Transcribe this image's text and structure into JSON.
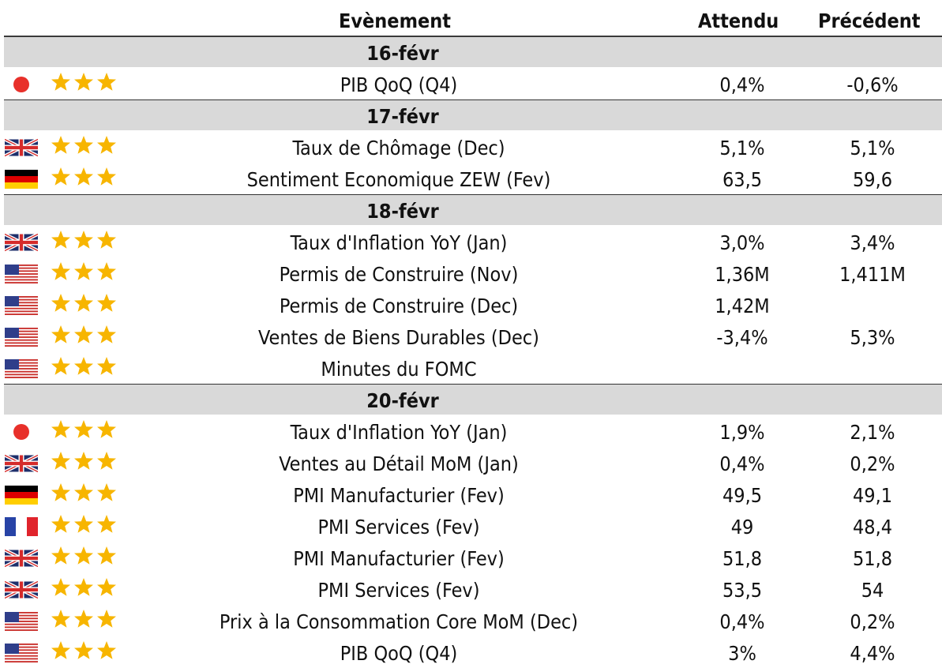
{
  "header": {
    "event": "Evènement",
    "expected": "Attendu",
    "previous": "Précédent"
  },
  "colors": {
    "star": "#f7b500",
    "date_bg": "#d9d9d9",
    "jp_red": "#e8302a",
    "uk_blue": "#1e2f6b",
    "uk_red": "#d52b2b",
    "us_red": "#c9302c",
    "us_blue": "#2f3e8a",
    "de_red": "#dd0000",
    "de_gold": "#ffce00",
    "fr_blue": "#2743a6",
    "fr_red": "#e0242c"
  },
  "groups": [
    {
      "date": "16-févr",
      "events": [
        {
          "flag": "jp",
          "importance": 3,
          "event": "PIB QoQ (Q4)",
          "expected": "0,4%",
          "previous": "-0,6%"
        }
      ]
    },
    {
      "date": "17-févr",
      "events": [
        {
          "flag": "uk",
          "importance": 3,
          "event": "Taux de Chômage (Dec)",
          "expected": "5,1%",
          "previous": "5,1%"
        },
        {
          "flag": "de",
          "importance": 3,
          "event": "Sentiment Economique ZEW (Fev)",
          "expected": "63,5",
          "previous": "59,6"
        }
      ]
    },
    {
      "date": "18-févr",
      "events": [
        {
          "flag": "uk",
          "importance": 3,
          "event": "Taux d'Inflation YoY (Jan)",
          "expected": "3,0%",
          "previous": "3,4%"
        },
        {
          "flag": "us",
          "importance": 3,
          "event": "Permis de Construire (Nov)",
          "expected": "1,36M",
          "previous": "1,411M"
        },
        {
          "flag": "us",
          "importance": 3,
          "event": "Permis de Construire (Dec)",
          "expected": "1,42M",
          "previous": ""
        },
        {
          "flag": "us",
          "importance": 3,
          "event": "Ventes de Biens Durables (Dec)",
          "expected": "-3,4%",
          "previous": "5,3%"
        },
        {
          "flag": "us",
          "importance": 3,
          "event": "Minutes du FOMC",
          "expected": "",
          "previous": ""
        }
      ]
    },
    {
      "date": "20-févr",
      "events": [
        {
          "flag": "jp",
          "importance": 3,
          "event": "Taux d'Inflation YoY (Jan)",
          "expected": "1,9%",
          "previous": "2,1%"
        },
        {
          "flag": "uk",
          "importance": 3,
          "event": "Ventes au Détail MoM (Jan)",
          "expected": "0,4%",
          "previous": "0,2%"
        },
        {
          "flag": "de",
          "importance": 3,
          "event": "PMI Manufacturier (Fev)",
          "expected": "49,5",
          "previous": "49,1"
        },
        {
          "flag": "fr",
          "importance": 3,
          "event": "PMI Services (Fev)",
          "expected": "49",
          "previous": "48,4"
        },
        {
          "flag": "uk",
          "importance": 3,
          "event": "PMI Manufacturier (Fev)",
          "expected": "51,8",
          "previous": "51,8"
        },
        {
          "flag": "uk",
          "importance": 3,
          "event": "PMI Services (Fev)",
          "expected": "53,5",
          "previous": "54"
        },
        {
          "flag": "us",
          "importance": 3,
          "event": "Prix à la Consommation Core MoM (Dec)",
          "expected": "0,4%",
          "previous": "0,2%"
        },
        {
          "flag": "us",
          "importance": 3,
          "event": "PIB QoQ (Q4)",
          "expected": "3%",
          "previous": "4,4%"
        }
      ]
    }
  ]
}
